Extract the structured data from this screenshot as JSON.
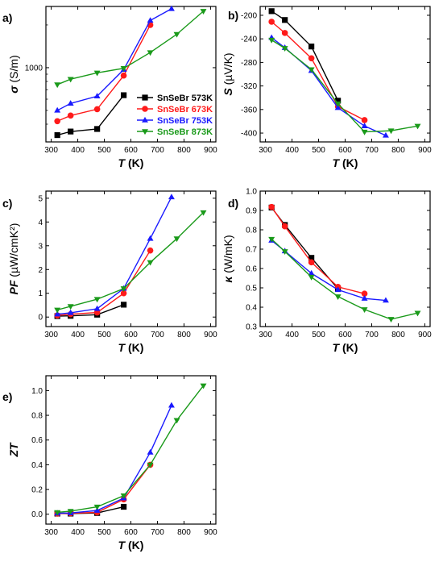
{
  "series_style": [
    {
      "name": "SnSeBr 573K",
      "color": "#000000",
      "marker": "square"
    },
    {
      "name": "SnSeBr 673K",
      "color": "#ff1a1a",
      "marker": "circle"
    },
    {
      "name": "SnSeBr 753K",
      "color": "#1a1aff",
      "marker": "triangle-up"
    },
    {
      "name": "SnSeBr 873K",
      "color": "#1a9a1a",
      "marker": "triangle-down"
    }
  ],
  "chart_data": [
    {
      "panel": "a)",
      "type": "line",
      "xlabel": "T (K)",
      "ylabel": "σ (S/m)",
      "yscale": "log",
      "xlim": [
        280,
        920
      ],
      "ylim": [
        300,
        2700
      ],
      "xticks": [
        300,
        400,
        500,
        600,
        700,
        800,
        900
      ],
      "yticks": [
        1000
      ],
      "legend": "inside, lower-right",
      "series": [
        {
          "name": "SnSeBr 573K",
          "x": [
            323,
            373,
            473,
            573
          ],
          "y": [
            335,
            355,
            370,
            640
          ]
        },
        {
          "name": "SnSeBr 673K",
          "x": [
            323,
            373,
            473,
            573,
            673
          ],
          "y": [
            420,
            460,
            510,
            880,
            2000
          ]
        },
        {
          "name": "SnSeBr 753K",
          "x": [
            323,
            373,
            473,
            573,
            673,
            753
          ],
          "y": [
            500,
            560,
            630,
            970,
            2150,
            2600
          ]
        },
        {
          "name": "SnSeBr 873K",
          "x": [
            323,
            373,
            473,
            573,
            673,
            773,
            873
          ],
          "y": [
            760,
            830,
            920,
            990,
            1280,
            1720,
            2500
          ]
        }
      ]
    },
    {
      "panel": "b)",
      "type": "line",
      "xlabel": "T (K)",
      "ylabel": "S (µV/K)",
      "xlim": [
        280,
        920
      ],
      "ylim": [
        -415,
        -185
      ],
      "xticks": [
        300,
        400,
        500,
        600,
        700,
        800,
        900
      ],
      "yticks": [
        -200,
        -240,
        -280,
        -320,
        -360,
        -400
      ],
      "series": [
        {
          "name": "SnSeBr 573K",
          "x": [
            323,
            373,
            473,
            573
          ],
          "y": [
            -193,
            -208,
            -253,
            -345
          ]
        },
        {
          "name": "SnSeBr 673K",
          "x": [
            323,
            373,
            473,
            573,
            673
          ],
          "y": [
            -211,
            -230,
            -273,
            -355,
            -378
          ]
        },
        {
          "name": "SnSeBr 753K",
          "x": [
            323,
            373,
            473,
            573,
            673,
            753
          ],
          "y": [
            -238,
            -255,
            -294,
            -357,
            -388,
            -404
          ]
        },
        {
          "name": "SnSeBr 873K",
          "x": [
            323,
            373,
            473,
            573,
            673,
            773,
            873
          ],
          "y": [
            -242,
            -256,
            -292,
            -350,
            -398,
            -396,
            -388
          ]
        }
      ]
    },
    {
      "panel": "c)",
      "type": "line",
      "xlabel": "T (K)",
      "ylabel": "PF (µW/cmK²)",
      "xlim": [
        280,
        920
      ],
      "ylim": [
        -0.4,
        5.3
      ],
      "xticks": [
        300,
        400,
        500,
        600,
        700,
        800,
        900
      ],
      "yticks": [
        0,
        1,
        2,
        3,
        4,
        5
      ],
      "series": [
        {
          "name": "SnSeBr 573K",
          "x": [
            323,
            373,
            473,
            573
          ],
          "y": [
            0.04,
            0.05,
            0.1,
            0.52
          ]
        },
        {
          "name": "SnSeBr 673K",
          "x": [
            323,
            373,
            473,
            573,
            673
          ],
          "y": [
            0.07,
            0.12,
            0.19,
            1.0,
            2.8
          ]
        },
        {
          "name": "SnSeBr 753K",
          "x": [
            323,
            373,
            473,
            573,
            673,
            753
          ],
          "y": [
            0.12,
            0.18,
            0.35,
            1.2,
            3.3,
            5.05
          ]
        },
        {
          "name": "SnSeBr 873K",
          "x": [
            323,
            373,
            473,
            573,
            673,
            773,
            873
          ],
          "y": [
            0.3,
            0.45,
            0.75,
            1.2,
            2.3,
            3.3,
            4.4
          ]
        }
      ]
    },
    {
      "panel": "d)",
      "type": "line",
      "xlabel": "T (K)",
      "ylabel": "κ (W/mK)",
      "xlim": [
        280,
        920
      ],
      "ylim": [
        0.3,
        1.0
      ],
      "xticks": [
        300,
        400,
        500,
        600,
        700,
        800,
        900
      ],
      "yticks": [
        0.3,
        0.4,
        0.5,
        0.6,
        0.7,
        0.8,
        0.9,
        1.0
      ],
      "series": [
        {
          "name": "SnSeBr 573K",
          "x": [
            323,
            373,
            473,
            573
          ],
          "y": [
            0.915,
            0.825,
            0.655,
            0.495
          ]
        },
        {
          "name": "SnSeBr 673K",
          "x": [
            323,
            373,
            473,
            573,
            673
          ],
          "y": [
            0.918,
            0.818,
            0.632,
            0.505,
            0.47
          ]
        },
        {
          "name": "SnSeBr 753K",
          "x": [
            323,
            373,
            473,
            573,
            673,
            753
          ],
          "y": [
            0.745,
            0.69,
            0.575,
            0.49,
            0.445,
            0.435
          ]
        },
        {
          "name": "SnSeBr 873K",
          "x": [
            323,
            373,
            473,
            573,
            673,
            773,
            873
          ],
          "y": [
            0.752,
            0.688,
            0.556,
            0.455,
            0.388,
            0.338,
            0.37
          ]
        }
      ]
    },
    {
      "panel": "e)",
      "type": "line",
      "xlabel": "T (K)",
      "ylabel": "ZT",
      "xlim": [
        280,
        920
      ],
      "ylim": [
        -0.08,
        1.12
      ],
      "xticks": [
        300,
        400,
        500,
        600,
        700,
        800,
        900
      ],
      "yticks": [
        0.0,
        0.2,
        0.4,
        0.6,
        0.8,
        1.0
      ],
      "series": [
        {
          "name": "SnSeBr 573K",
          "x": [
            323,
            373,
            473,
            573
          ],
          "y": [
            0.005,
            0.005,
            0.01,
            0.06
          ]
        },
        {
          "name": "SnSeBr 673K",
          "x": [
            323,
            373,
            473,
            573,
            673
          ],
          "y": [
            0.005,
            0.008,
            0.015,
            0.12,
            0.4
          ]
        },
        {
          "name": "SnSeBr 753K",
          "x": [
            323,
            373,
            473,
            573,
            673,
            753
          ],
          "y": [
            0.008,
            0.01,
            0.03,
            0.13,
            0.5,
            0.88
          ]
        },
        {
          "name": "SnSeBr 873K",
          "x": [
            323,
            373,
            473,
            573,
            673,
            773,
            873
          ],
          "y": [
            0.015,
            0.025,
            0.06,
            0.15,
            0.4,
            0.76,
            1.04
          ]
        }
      ]
    }
  ]
}
